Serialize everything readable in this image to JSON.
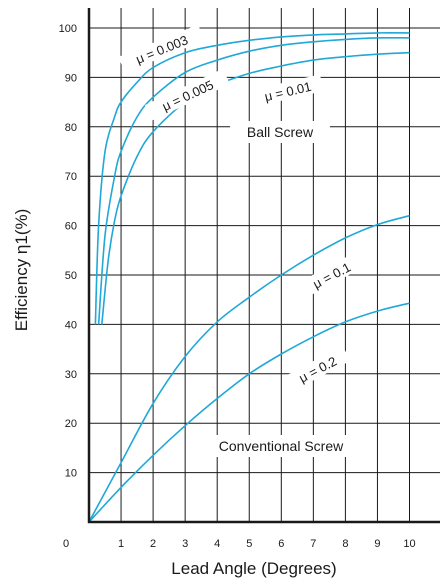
{
  "chart_data": {
    "type": "line",
    "xlabel": "Lead Angle (Degrees)",
    "ylabel": "Efficiency η1(%)",
    "xlim": [
      0,
      11
    ],
    "ylim": [
      0,
      105
    ],
    "x_ticks": [
      "0",
      "1",
      "2",
      "3",
      "4",
      "5",
      "6",
      "7",
      "8",
      "9",
      "10"
    ],
    "y_ticks": [
      "10",
      "20",
      "30",
      "40",
      "50",
      "60",
      "70",
      "80",
      "90",
      "100"
    ],
    "grid": true,
    "line_color": "#1fa8d8",
    "series": [
      {
        "name": "μ = 0.003",
        "x": [
          0.2,
          0.3,
          0.5,
          0.8,
          1.0,
          1.5,
          2.0,
          3.0,
          4.0,
          5.0,
          6.0,
          7.0,
          8.0,
          9.0,
          10.0
        ],
        "y": [
          40,
          60,
          75,
          82,
          85,
          89,
          92,
          95,
          96.5,
          97.5,
          98.2,
          98.6,
          98.8,
          99,
          99
        ]
      },
      {
        "name": "μ = 0.005",
        "x": [
          0.3,
          0.5,
          0.8,
          1.0,
          1.5,
          2.0,
          3.0,
          4.0,
          5.0,
          6.0,
          7.0,
          8.0,
          9.0,
          10.0
        ],
        "y": [
          40,
          58,
          70,
          75,
          82,
          86,
          91,
          93.5,
          95.3,
          96.5,
          97.2,
          97.7,
          98,
          98
        ]
      },
      {
        "name": "μ = 0.01",
        "x": [
          0.4,
          0.6,
          0.8,
          1.0,
          1.5,
          2.0,
          3.0,
          4.0,
          5.0,
          6.0,
          7.0,
          8.0,
          9.0,
          10.0
        ],
        "y": [
          40,
          53,
          61,
          66,
          74,
          79,
          85,
          88.5,
          90.8,
          92.3,
          93.5,
          94.2,
          94.7,
          95
        ]
      },
      {
        "name": "μ = 0.1",
        "x": [
          0,
          1,
          2,
          3,
          4,
          5,
          6,
          7,
          8,
          9,
          10
        ],
        "y": [
          0,
          12,
          24,
          33.5,
          40.5,
          45.5,
          50,
          54,
          57.5,
          60.2,
          62
        ]
      },
      {
        "name": "μ = 0.2",
        "x": [
          0,
          1,
          2,
          3,
          4,
          5,
          6,
          7,
          8,
          9,
          10
        ],
        "y": [
          0,
          7,
          13.5,
          19.5,
          25,
          30,
          34,
          37.5,
          40.5,
          42.7,
          44.3
        ]
      }
    ],
    "annotations": [
      {
        "text": "Ball Screw"
      },
      {
        "text": "Conventional Screw"
      }
    ]
  }
}
